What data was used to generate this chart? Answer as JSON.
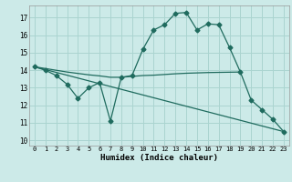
{
  "xlabel": "Humidex (Indice chaleur)",
  "background_color": "#cceae8",
  "grid_color": "#aad4d0",
  "line_color": "#1f6b5e",
  "x_ticks": [
    0,
    1,
    2,
    3,
    4,
    5,
    6,
    7,
    8,
    9,
    10,
    11,
    12,
    13,
    14,
    15,
    16,
    17,
    18,
    19,
    20,
    21,
    22,
    23
  ],
  "y_ticks": [
    10,
    11,
    12,
    13,
    14,
    15,
    16,
    17
  ],
  "ylim": [
    9.7,
    17.7
  ],
  "xlim": [
    -0.5,
    23.5
  ],
  "line1_x": [
    0,
    1,
    2,
    3,
    4,
    5,
    6,
    7,
    8,
    9,
    10,
    11,
    12,
    13,
    14,
    15,
    16,
    17,
    18,
    19,
    20,
    21,
    22,
    23
  ],
  "line1_y": [
    14.2,
    14.0,
    13.7,
    13.2,
    12.4,
    13.0,
    13.3,
    11.1,
    13.6,
    13.7,
    15.2,
    16.3,
    16.6,
    17.25,
    17.3,
    16.3,
    16.65,
    16.6,
    15.3,
    13.9,
    12.3,
    11.75,
    11.2,
    10.5
  ],
  "line2_x": [
    0,
    1,
    2,
    3,
    4,
    5,
    6,
    7,
    8,
    9,
    10,
    11,
    12,
    13,
    14,
    15,
    16,
    17,
    18,
    19
  ],
  "line2_y": [
    14.2,
    14.1,
    14.0,
    13.9,
    13.82,
    13.74,
    13.68,
    13.6,
    13.6,
    13.65,
    13.7,
    13.72,
    13.76,
    13.8,
    13.83,
    13.85,
    13.87,
    13.88,
    13.89,
    13.9
  ],
  "line3_x": [
    0,
    23
  ],
  "line3_y": [
    14.2,
    10.5
  ]
}
